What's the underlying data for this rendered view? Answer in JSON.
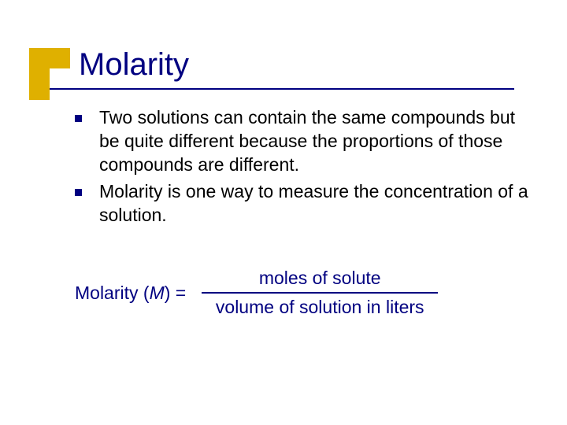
{
  "title": "Molarity",
  "accent_color": "#dfb000",
  "title_color": "#000080",
  "text_color": "#000000",
  "equation_color": "#000080",
  "bullets": [
    "Two solutions can contain the same compounds but be quite different because the proportions of those compounds are different.",
    "Molarity is one way to measure the concentration of a solution."
  ],
  "equation": {
    "label_prefix": "Molarity (",
    "label_italic": "M",
    "label_suffix": ") = ",
    "numerator": "moles of solute",
    "denominator": "volume of solution in liters"
  }
}
